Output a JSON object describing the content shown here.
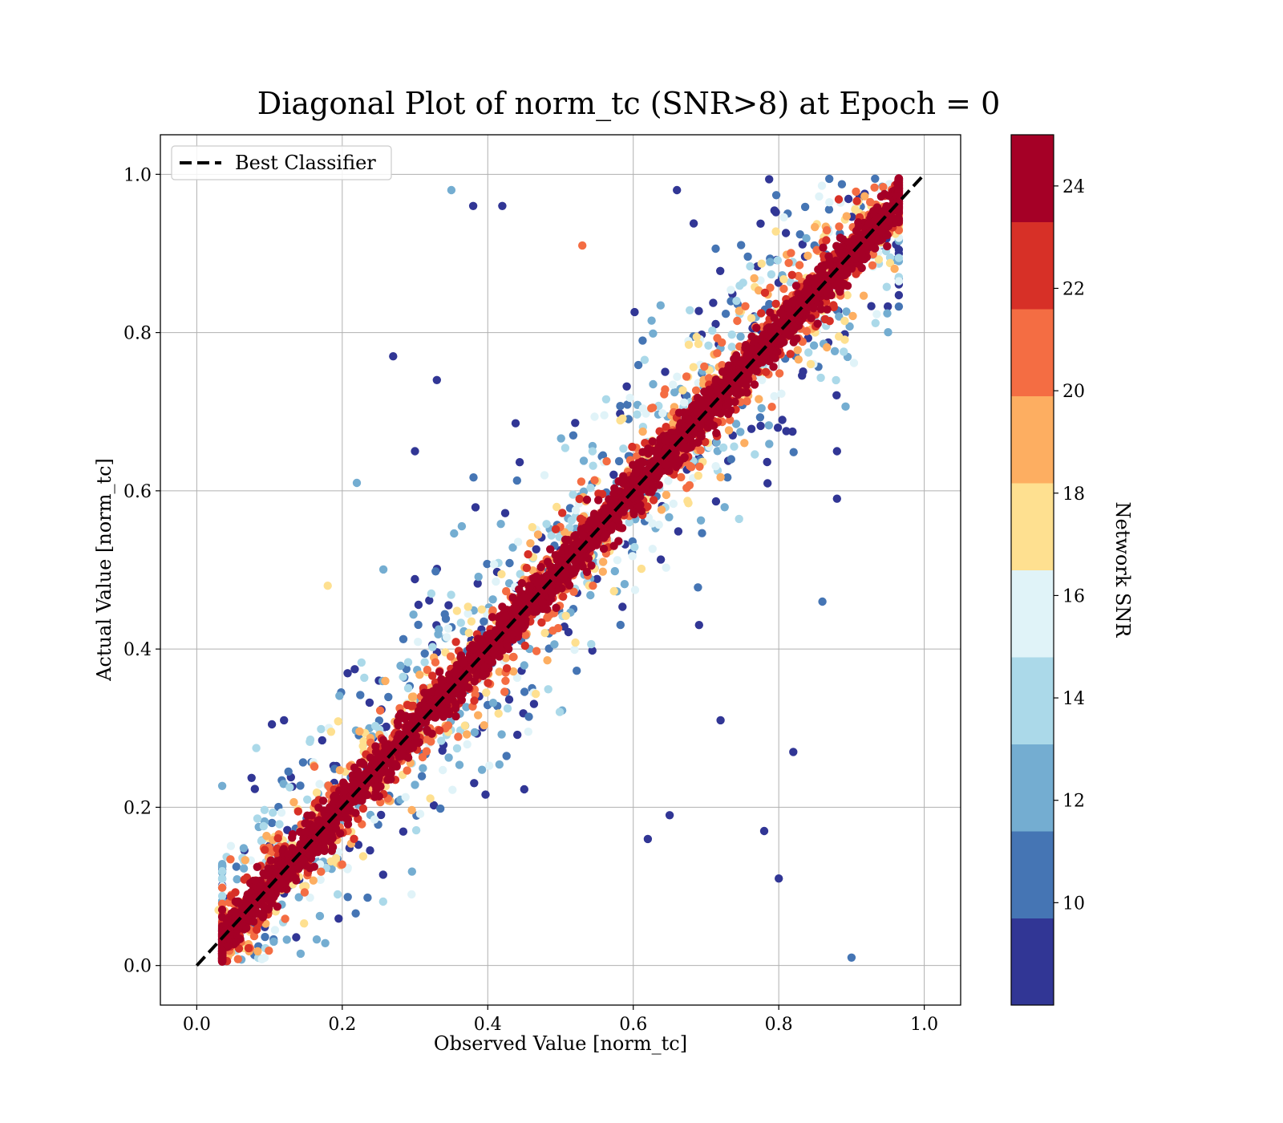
{
  "chart_data": {
    "type": "scatter",
    "title": "Diagonal Plot of norm_tc (SNR>8) at Epoch = 0",
    "xlabel": "Observed Value [norm_tc]",
    "ylabel": "Actual Value [norm_tc]",
    "xlim": [
      -0.05,
      1.05
    ],
    "ylim": [
      -0.05,
      1.05
    ],
    "xticks": [
      "0.0",
      "0.2",
      "0.4",
      "0.6",
      "0.8",
      "1.0"
    ],
    "yticks": [
      "0.0",
      "0.2",
      "0.4",
      "0.6",
      "0.8",
      "1.0"
    ],
    "grid": true,
    "legend": {
      "placement": "upper-left",
      "entries": [
        {
          "label": "Best Classifier",
          "style": "dashed",
          "color": "#000000",
          "x": [
            0,
            1
          ],
          "y": [
            0,
            1
          ]
        }
      ]
    },
    "colorbar": {
      "label": "Network SNR",
      "range": [
        8,
        25
      ],
      "boundaries": [
        8,
        9.7,
        11.4,
        13.1,
        14.8,
        16.5,
        18.2,
        19.9,
        21.6,
        23.3,
        25
      ],
      "ticks": [
        "10",
        "12",
        "14",
        "16",
        "18",
        "20",
        "22",
        "24"
      ],
      "tick_values": [
        10,
        12,
        14,
        16,
        18,
        20,
        22,
        24
      ],
      "colors": [
        "#313695",
        "#4575b4",
        "#74add1",
        "#abd9e9",
        "#e0f3f8",
        "#fee090",
        "#fdae61",
        "#f46d43",
        "#d73027",
        "#a50026"
      ]
    },
    "points_description": "dense cloud of points along the diagonal; high-SNR (dark red) points cluster tightly around y=x within roughly ±0.1, lower-SNR points (blue/yellow) scatter more widely",
    "sample_points": [
      {
        "x": 0.35,
        "y": 0.98,
        "snr": 13
      },
      {
        "x": 0.38,
        "y": 0.96,
        "snr": 9
      },
      {
        "x": 0.42,
        "y": 0.96,
        "snr": 9
      },
      {
        "x": 0.27,
        "y": 0.77,
        "snr": 9
      },
      {
        "x": 0.53,
        "y": 0.91,
        "snr": 21
      },
      {
        "x": 0.18,
        "y": 0.48,
        "snr": 18
      },
      {
        "x": 0.22,
        "y": 0.61,
        "snr": 12
      },
      {
        "x": 0.86,
        "y": 0.46,
        "snr": 10
      },
      {
        "x": 0.82,
        "y": 0.27,
        "snr": 9
      },
      {
        "x": 0.9,
        "y": 0.01,
        "snr": 10
      },
      {
        "x": 0.8,
        "y": 0.11,
        "snr": 9
      },
      {
        "x": 0.88,
        "y": 0.65,
        "snr": 9
      },
      {
        "x": 0.88,
        "y": 0.59,
        "snr": 9
      },
      {
        "x": 0.03,
        "y": 0.07,
        "snr": 18
      },
      {
        "x": 0.12,
        "y": 0.31,
        "snr": 9
      },
      {
        "x": 0.72,
        "y": 0.31,
        "snr": 9
      },
      {
        "x": 0.78,
        "y": 0.17,
        "snr": 9
      },
      {
        "x": 0.65,
        "y": 0.19,
        "snr": 9
      },
      {
        "x": 0.62,
        "y": 0.16,
        "snr": 9
      },
      {
        "x": 0.3,
        "y": 0.65,
        "snr": 9
      },
      {
        "x": 0.33,
        "y": 0.74,
        "snr": 9
      },
      {
        "x": 0.66,
        "y": 0.98,
        "snr": 9
      }
    ]
  }
}
